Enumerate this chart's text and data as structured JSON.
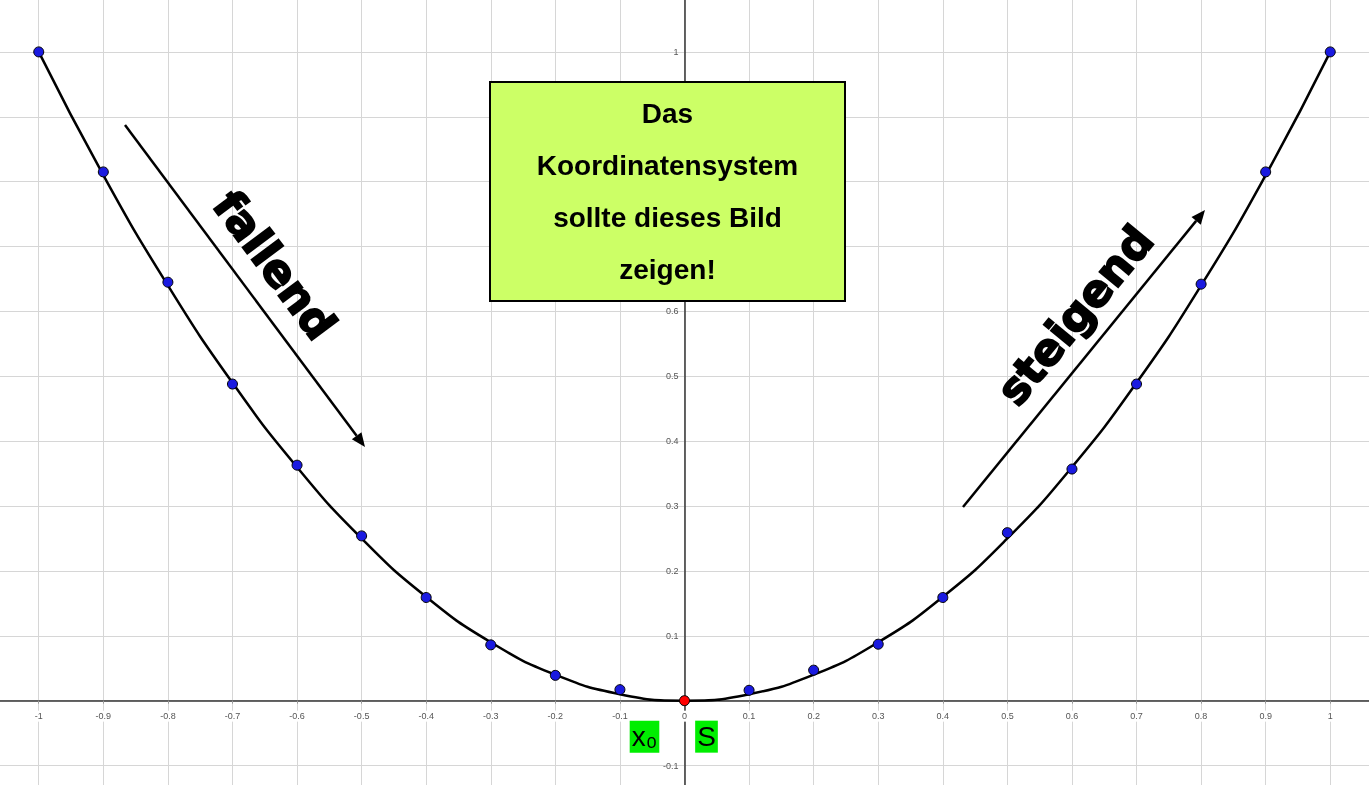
{
  "chart_data": {
    "type": "line",
    "xlim": [
      -1.06,
      1.06
    ],
    "ylim": [
      -0.13,
      1.08
    ],
    "xticks": [
      -1,
      -0.9,
      -0.8,
      -0.7,
      -0.6,
      -0.5,
      -0.4,
      -0.3,
      -0.2,
      -0.1,
      0,
      0.1,
      0.2,
      0.3,
      0.4,
      0.5,
      0.6,
      0.7,
      0.8,
      0.9,
      1
    ],
    "yticks": [
      -0.1,
      {
        "value": 0,
        "label": null
      },
      0.1,
      0.2,
      0.3,
      0.4,
      0.5,
      0.6,
      {
        "value": 0.7,
        "label": null
      },
      {
        "value": 0.8,
        "label": null
      },
      {
        "value": 0.9,
        "label": null
      },
      1
    ],
    "grid": true,
    "series": [
      {
        "color": "#000000",
        "marker": "none",
        "line_style": "solid",
        "x": [
          -1,
          -0.9,
          -0.8,
          -0.7,
          -0.6,
          -0.5,
          -0.4,
          -0.3,
          -0.2,
          -0.1,
          0,
          0.1,
          0.2,
          0.3,
          0.4,
          0.5,
          0.6,
          0.7,
          0.8,
          0.9,
          1
        ],
        "values": [
          1,
          0.81,
          0.64,
          0.49,
          0.36,
          0.25,
          0.16,
          0.09,
          0.04,
          0.01,
          0,
          0.01,
          0.04,
          0.09,
          0.16,
          0.25,
          0.36,
          0.49,
          0.64,
          0.81,
          1
        ]
      },
      {
        "type": "scatter",
        "color": "#1a1ae0",
        "marker": "circle",
        "x": [
          -1,
          -0.9,
          -0.8,
          -0.7,
          -0.6,
          -0.5,
          -0.4,
          -0.3,
          -0.2,
          -0.1,
          0.1,
          0.2,
          0.3,
          0.4,
          0.5,
          0.6,
          0.7,
          0.8,
          0.9,
          1
        ],
        "values": [
          1,
          0.815,
          0.645,
          0.488,
          0.363,
          0.254,
          0.159,
          0.086,
          0.039,
          0.017,
          0.016,
          0.047,
          0.087,
          0.159,
          0.259,
          0.357,
          0.488,
          0.642,
          0.815,
          1
        ]
      },
      {
        "type": "scatter",
        "color": "#ff0000",
        "marker": "circle",
        "x": [
          0
        ],
        "values": [
          0
        ]
      }
    ],
    "annotations": [
      "Das Koordinatensystem sollte dieses Bild zeigen!",
      "fallend",
      "steigend",
      {
        "text": "x₀",
        "x": 0,
        "y": 0
      },
      {
        "text": "S",
        "x": 0,
        "y": 0
      }
    ]
  }
}
